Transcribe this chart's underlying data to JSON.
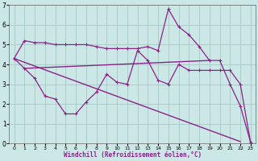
{
  "xlabel": "Windchill (Refroidissement éolien,°C)",
  "xlim": [
    -0.5,
    23.5
  ],
  "ylim": [
    0,
    7
  ],
  "xticks": [
    0,
    1,
    2,
    3,
    4,
    5,
    6,
    7,
    8,
    9,
    10,
    11,
    12,
    13,
    14,
    15,
    16,
    17,
    18,
    19,
    20,
    21,
    22,
    23
  ],
  "yticks": [
    0,
    1,
    2,
    3,
    4,
    5,
    6,
    7
  ],
  "background_color": "#cce8e6",
  "grid_color": "#a8c8c5",
  "line_color": "#882288",
  "series1_x": [
    0,
    1,
    2,
    3,
    4,
    5,
    6,
    7,
    8,
    9,
    10,
    11,
    12,
    13,
    14,
    15,
    16,
    17,
    18,
    19,
    20,
    21,
    22,
    23
  ],
  "series1_y": [
    4.3,
    5.2,
    5.1,
    5.1,
    5.0,
    5.0,
    5.0,
    5.0,
    4.9,
    4.8,
    4.8,
    4.8,
    4.8,
    4.9,
    4.7,
    6.8,
    5.9,
    5.5,
    4.9,
    4.2,
    4.2,
    3.0,
    1.9,
    0.05
  ],
  "series2_x": [
    0,
    1,
    2,
    3,
    4,
    5,
    6,
    7,
    8,
    9,
    10,
    11,
    12,
    13,
    14,
    15,
    16,
    17,
    18,
    19,
    20,
    21,
    22,
    23
  ],
  "series2_y": [
    4.3,
    3.8,
    3.3,
    2.4,
    2.25,
    1.5,
    1.5,
    2.1,
    2.6,
    3.5,
    3.1,
    3.0,
    4.7,
    4.2,
    3.2,
    3.0,
    4.0,
    3.7,
    3.7,
    3.7,
    3.7,
    3.7,
    3.0,
    0.05
  ],
  "series3_x": [
    1,
    19
  ],
  "series3_y": [
    3.8,
    4.2
  ],
  "series4_x": [
    0,
    22
  ],
  "series4_y": [
    4.3,
    0.1
  ]
}
